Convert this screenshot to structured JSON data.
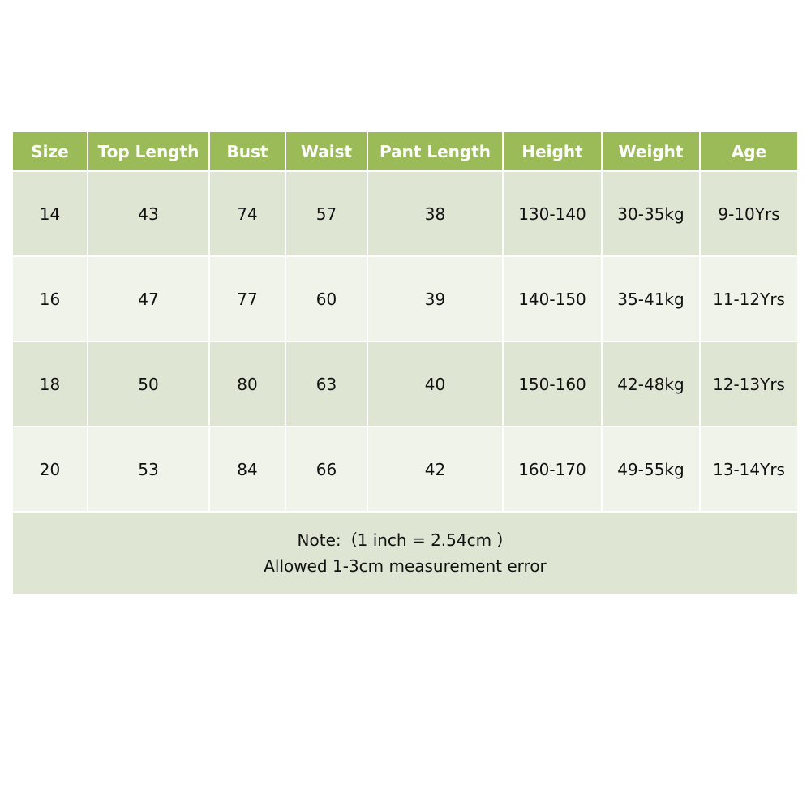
{
  "table": {
    "headers": [
      "Size",
      "Top Length",
      "Bust",
      "Waist",
      "Pant Length",
      "Height",
      "Weight",
      "Age"
    ],
    "rows": [
      [
        "14",
        "43",
        "74",
        "57",
        "38",
        "130-140",
        "30-35kg",
        "9-10Yrs"
      ],
      [
        "16",
        "47",
        "77",
        "60",
        "39",
        "140-150",
        "35-41kg",
        "11-12Yrs"
      ],
      [
        "18",
        "50",
        "80",
        "63",
        "40",
        "150-160",
        "42-48kg",
        "12-13Yrs"
      ],
      [
        "20",
        "53",
        "84",
        "66",
        "42",
        "160-170",
        "49-55kg",
        "13-14Yrs"
      ]
    ],
    "note_line1": "Note:（1 inch = 2.54cm ）",
    "note_line2": "Allowed 1-3cm measurement error"
  },
  "colors": {
    "header": "#9bbb59",
    "row_dark": "#dee6d3",
    "row_light": "#eff3ea"
  }
}
